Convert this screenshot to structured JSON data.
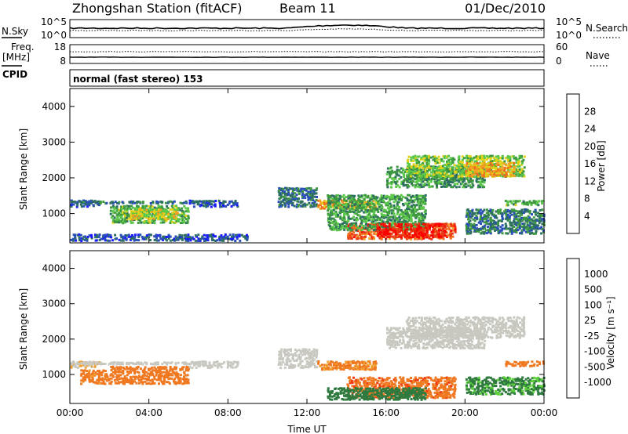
{
  "header": {
    "station": "Zhongshan Station (fitACF)",
    "beam": "Beam 11",
    "date": "01/Dec/2010"
  },
  "aux_panels": {
    "nsky_label": "N.Sky",
    "nsearch_label": "N.Search",
    "nsky_ticks": [
      "10^5",
      "10^0"
    ],
    "nsearch_ticks": [
      "10^5",
      "10^0"
    ],
    "freq_label_line1": "Freq.",
    "freq_label_line2": "[MHz]",
    "freq_ticks": [
      "18",
      "8"
    ],
    "nave_label": "Nave",
    "nave_ticks": [
      "60",
      "0"
    ],
    "cpid_label": "CPID",
    "cpid_text": "normal (fast stereo) 153"
  },
  "colors": {
    "power_scale": [
      "#1a1aff",
      "#2a4fb8",
      "#2e6f62",
      "#3f9a3f",
      "#5bc84a",
      "#e0d21a",
      "#f0a022",
      "#f0701e",
      "#e83a18",
      "#ff0000"
    ],
    "velocity_scale": [
      "#1428c8",
      "#2f5fbf",
      "#2f7a3f",
      "#5ccf3a",
      "#c8c8c0",
      "#f0a030",
      "#f07820",
      "#f03a10",
      "#ff0000"
    ]
  },
  "chart_data": [
    {
      "type": "heatmap",
      "panel": "power",
      "ylabel": "Slant Range [km]",
      "xlabel": "",
      "yticks": [
        "1000",
        "2000",
        "3000",
        "4000"
      ],
      "xticks": [
        "00:00",
        "04:00",
        "08:00",
        "12:00",
        "16:00",
        "20:00",
        "00:00"
      ],
      "ylim": [
        180,
        4500
      ],
      "xlim": [
        0,
        24
      ],
      "colorbar_label": "Power [dB]",
      "colorbar_ticks": [
        "4",
        "8",
        "12",
        "16",
        "20",
        "24",
        "28"
      ],
      "colorbar_range": [
        0,
        30
      ],
      "regions": [
        {
          "t": [
            0.0,
            1.5
          ],
          "r": [
            1150,
            1350
          ],
          "v": 5
        },
        {
          "t": [
            0.0,
            6.5
          ],
          "r": [
            1250,
            1320
          ],
          "v": 7
        },
        {
          "t": [
            2.0,
            6.0
          ],
          "r": [
            700,
            1200
          ],
          "v": 12
        },
        {
          "t": [
            3.0,
            5.5
          ],
          "r": [
            800,
            1100
          ],
          "v": 16
        },
        {
          "t": [
            0.0,
            9.0
          ],
          "r": [
            200,
            400
          ],
          "v": 5
        },
        {
          "t": [
            6.0,
            8.5
          ],
          "r": [
            1150,
            1350
          ],
          "v": 5
        },
        {
          "t": [
            10.5,
            12.5
          ],
          "r": [
            1150,
            1700
          ],
          "v": 7
        },
        {
          "t": [
            12.5,
            15.5
          ],
          "r": [
            1100,
            1350
          ],
          "v": 20
        },
        {
          "t": [
            14.0,
            19.5
          ],
          "r": [
            250,
            700
          ],
          "v": 24
        },
        {
          "t": [
            13.0,
            18.0
          ],
          "r": [
            500,
            1500
          ],
          "v": 11
        },
        {
          "t": [
            15.5,
            19.0
          ],
          "r": [
            300,
            700
          ],
          "v": 28
        },
        {
          "t": [
            16.0,
            21.0
          ],
          "r": [
            1700,
            2300
          ],
          "v": 10
        },
        {
          "t": [
            17.0,
            23.0
          ],
          "r": [
            2000,
            2600
          ],
          "v": 14
        },
        {
          "t": [
            20.0,
            22.5
          ],
          "r": [
            2000,
            2400
          ],
          "v": 20
        },
        {
          "t": [
            20.0,
            24.0
          ],
          "r": [
            400,
            1100
          ],
          "v": 8
        },
        {
          "t": [
            22.0,
            24.0
          ],
          "r": [
            1200,
            1350
          ],
          "v": 12
        }
      ]
    },
    {
      "type": "heatmap",
      "panel": "velocity",
      "ylabel": "Slant Range [km]",
      "xlabel": "Time UT",
      "yticks": [
        "1000",
        "2000",
        "3000",
        "4000"
      ],
      "xticks": [
        "00:00",
        "04:00",
        "08:00",
        "12:00",
        "16:00",
        "20:00",
        "00:00"
      ],
      "ylim": [
        180,
        4500
      ],
      "xlim": [
        0,
        24
      ],
      "colorbar_label": "Velocity [m s⁻¹]",
      "colorbar_ticks": [
        "1000",
        "500",
        "100",
        "25",
        "-25",
        "-100",
        "-500",
        "-1000"
      ],
      "regions": [
        {
          "t": [
            0.0,
            1.5
          ],
          "r": [
            1150,
            1350
          ],
          "v": -25
        },
        {
          "t": [
            0.0,
            6.5
          ],
          "r": [
            1250,
            1320
          ],
          "v": 0
        },
        {
          "t": [
            2.0,
            6.0
          ],
          "r": [
            700,
            1200
          ],
          "v": -300
        },
        {
          "t": [
            0.5,
            2.0
          ],
          "r": [
            700,
            1100
          ],
          "v": -150
        },
        {
          "t": [
            6.0,
            8.5
          ],
          "r": [
            1150,
            1350
          ],
          "v": 10
        },
        {
          "t": [
            10.5,
            12.5
          ],
          "r": [
            1150,
            1700
          ],
          "v": 0
        },
        {
          "t": [
            12.5,
            15.5
          ],
          "r": [
            1100,
            1350
          ],
          "v": -120
        },
        {
          "t": [
            14.0,
            19.5
          ],
          "r": [
            300,
            900
          ],
          "v": -400
        },
        {
          "t": [
            13.0,
            18.0
          ],
          "r": [
            250,
            600
          ],
          "v": 200
        },
        {
          "t": [
            16.0,
            21.0
          ],
          "r": [
            1700,
            2300
          ],
          "v": 0
        },
        {
          "t": [
            17.0,
            23.0
          ],
          "r": [
            2000,
            2600
          ],
          "v": 5
        },
        {
          "t": [
            20.0,
            24.0
          ],
          "r": [
            400,
            900
          ],
          "v": 120
        },
        {
          "t": [
            22.0,
            24.0
          ],
          "r": [
            1200,
            1350
          ],
          "v": -200
        }
      ]
    }
  ]
}
